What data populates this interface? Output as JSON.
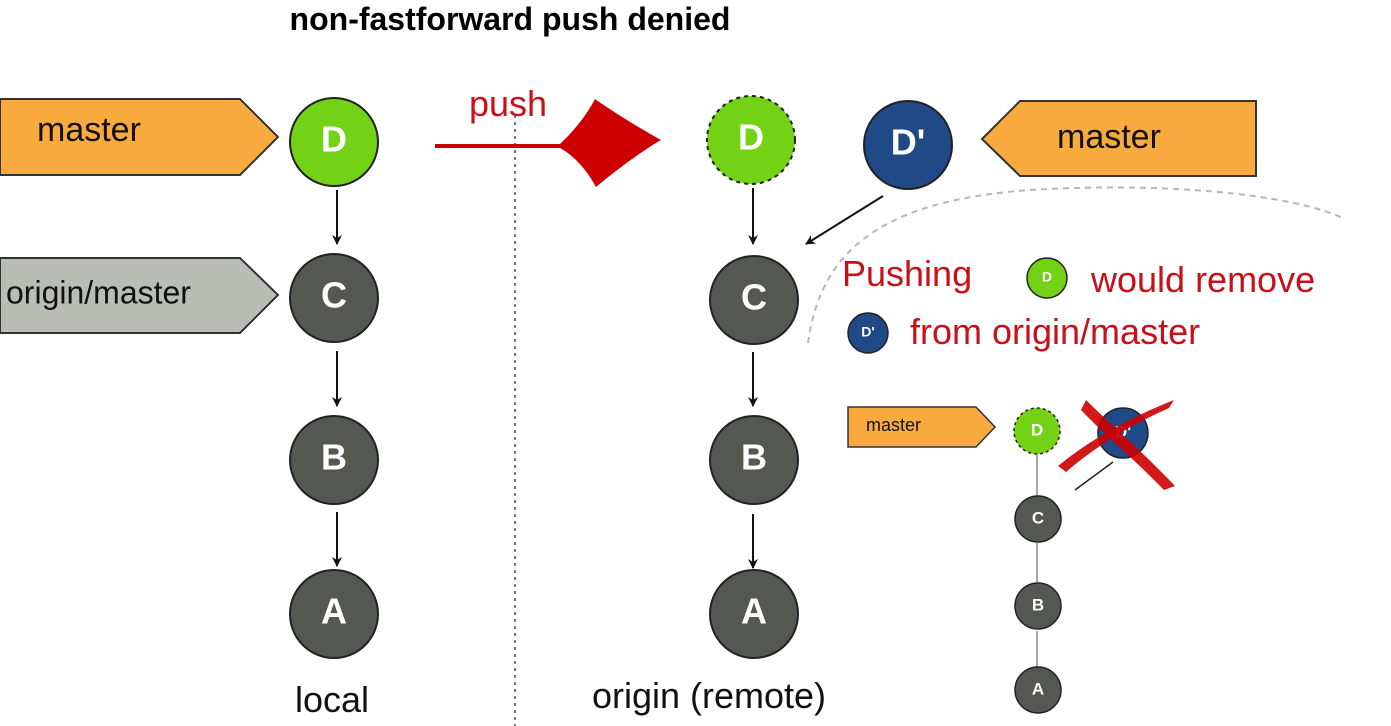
{
  "title": "non-fastforward push denied",
  "labels": {
    "local": "local",
    "remote": "origin (remote)"
  },
  "push_label": "push",
  "local": {
    "master_tag": "master",
    "origin_tag": "origin/master",
    "commits": [
      "D",
      "C",
      "B",
      "A"
    ]
  },
  "remote": {
    "pushed_commit": "D",
    "existing_commit": "D'",
    "master_tag": "master",
    "commits": [
      "C",
      "B",
      "A"
    ]
  },
  "warning": {
    "line1_prefix": "Pushing",
    "line1_node": "D",
    "line1_suffix": "would remove",
    "line2_node": "D'",
    "line2_suffix": "from origin/master"
  },
  "mini": {
    "master_tag": "master",
    "commits": [
      "D",
      "D'",
      "C",
      "B",
      "A"
    ]
  },
  "colors": {
    "green": "#73d216",
    "blue": "#204a87",
    "dark": "#555753",
    "orange": "#f8aa3e",
    "gray_tag": "#babdb6",
    "red": "#cc0000"
  }
}
